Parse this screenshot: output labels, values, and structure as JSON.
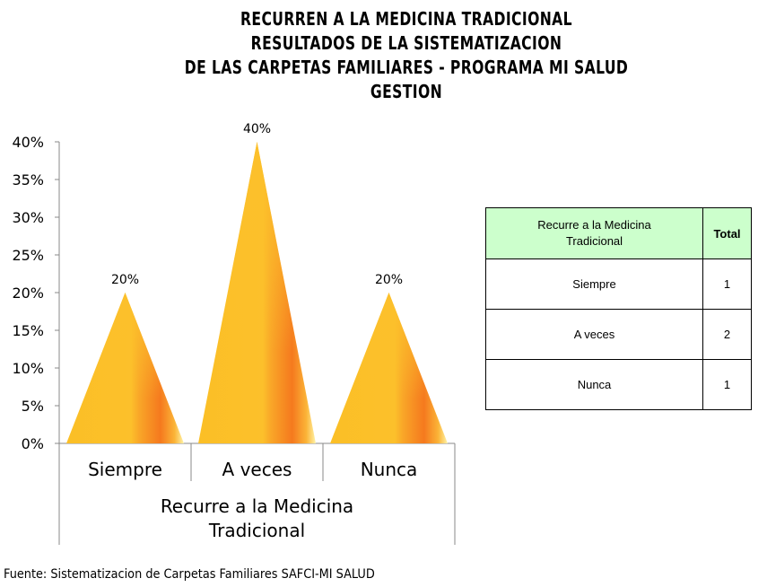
{
  "title_lines": [
    "RECURREN A LA MEDICINA TRADICIONAL",
    "RESULTADOS DE LA SISTEMATIZACION",
    "DE LAS CARPETAS FAMILIARES - PROGRAMA MI SALUD",
    "GESTION"
  ],
  "chart_data": {
    "type": "bar",
    "shape": "cone-triangle",
    "categories": [
      "Siempre",
      "A veces",
      "Nunca"
    ],
    "values": [
      20,
      40,
      20
    ],
    "data_labels": [
      "20%",
      "40%",
      "20%"
    ],
    "xlabel": "Recurre a la Medicina Tradicional",
    "xlabel_lines": [
      "Recurre a la Medicina",
      "Tradicional"
    ],
    "ylabel": "",
    "ylim": [
      0,
      40
    ],
    "yticks": [
      0,
      5,
      10,
      15,
      20,
      25,
      30,
      35,
      40
    ],
    "ytick_labels": [
      "0%",
      "5%",
      "10%",
      "15%",
      "20%",
      "25%",
      "30%",
      "35%",
      "40%"
    ],
    "grid": false,
    "colors": {
      "bar": "#fbbe2a",
      "bar_shade": "#f77a1e",
      "bar_highlight": "#fff2a0",
      "axis": "#888888"
    }
  },
  "table": {
    "headers": [
      "Recurre a la Medicina Tradicional",
      "Total"
    ],
    "rows": [
      [
        "Siempre",
        "1"
      ],
      [
        "A veces",
        "2"
      ],
      [
        "Nunca",
        "1"
      ]
    ]
  },
  "source": "Fuente: Sistematizacion de Carpetas Familiares SAFCI-MI SALUD"
}
